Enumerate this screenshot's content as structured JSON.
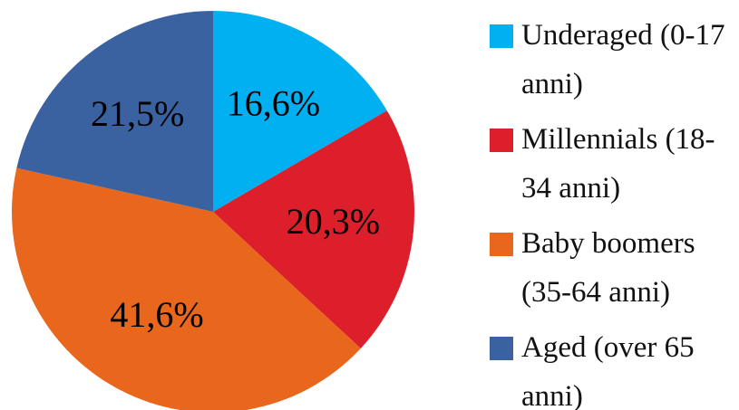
{
  "chart_data": {
    "type": "pie",
    "categories": [
      "Underaged (0-17 anni)",
      "Millennials (18-34 anni)",
      "Baby boomers (35-64 anni)",
      "Aged (over 65 anni)"
    ],
    "values": [
      16.6,
      20.3,
      41.6,
      21.5
    ],
    "value_labels": [
      "16,6%",
      "20,3%",
      "41,6%",
      "21,5%"
    ],
    "colors": [
      "#00b0f0",
      "#dc1f2b",
      "#e8671c",
      "#3a62a0"
    ],
    "legend": "right"
  }
}
